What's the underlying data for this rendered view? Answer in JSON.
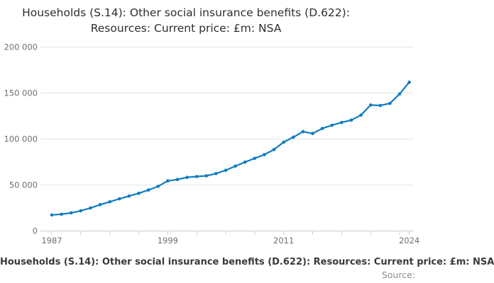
{
  "title": {
    "line1": "Households (S.14): Other social insurance benefits (D.622):",
    "line2": "Resources: Current price: £m: NSA"
  },
  "footer": {
    "caption": "Households (S.14): Other social insurance benefits (D.622): Resources: Current price: £m: NSA",
    "source_label": "Source:"
  },
  "colors": {
    "line": "#0f7cbf",
    "gridline": "#e4e4e4",
    "axis": "#c3cfda",
    "tick_label": "#6f6f6f"
  },
  "chart_data": {
    "type": "line",
    "title": "Households (S.14): Other social insurance benefits (D.622): Resources: Current price: £m: NSA",
    "x": [
      1987,
      1988,
      1989,
      1990,
      1991,
      1992,
      1993,
      1994,
      1995,
      1996,
      1997,
      1998,
      1999,
      2000,
      2001,
      2002,
      2003,
      2004,
      2005,
      2006,
      2007,
      2008,
      2009,
      2010,
      2011,
      2012,
      2013,
      2014,
      2015,
      2016,
      2017,
      2018,
      2019,
      2020,
      2021,
      2022,
      2023,
      2024
    ],
    "series": [
      {
        "name": "Households (S.14): Other social insurance benefits (D.622): Resources: Current price: £m: NSA",
        "values": [
          17500,
          18200,
          19700,
          22000,
          25000,
          28600,
          31800,
          35000,
          38000,
          41000,
          44500,
          48500,
          54500,
          56000,
          58300,
          59200,
          60000,
          62500,
          66000,
          70500,
          74900,
          79000,
          83000,
          88500,
          96600,
          102000,
          108000,
          106000,
          111500,
          115000,
          118000,
          120500,
          126000,
          137000,
          136500,
          138800,
          149000,
          161800
        ]
      }
    ],
    "xlabel": "",
    "ylabel": "",
    "ylim": [
      0,
      200000
    ],
    "xlim": [
      1987,
      2024
    ],
    "yticks": [
      0,
      50000,
      100000,
      150000,
      200000
    ],
    "ytick_labels": [
      "0",
      "50 000",
      "100 000",
      "150 000",
      "200 000"
    ],
    "xticks": [
      1987,
      1990,
      1993,
      1996,
      1999,
      2002,
      2005,
      2008,
      2011,
      2014,
      2017,
      2020,
      2023,
      2024
    ],
    "xtick_labels_visible": [
      "1987",
      "1999",
      "2011",
      "2024"
    ],
    "grid": "horizontal",
    "legend": "none",
    "line_color": "#0f7cbf",
    "marker": "circle"
  }
}
